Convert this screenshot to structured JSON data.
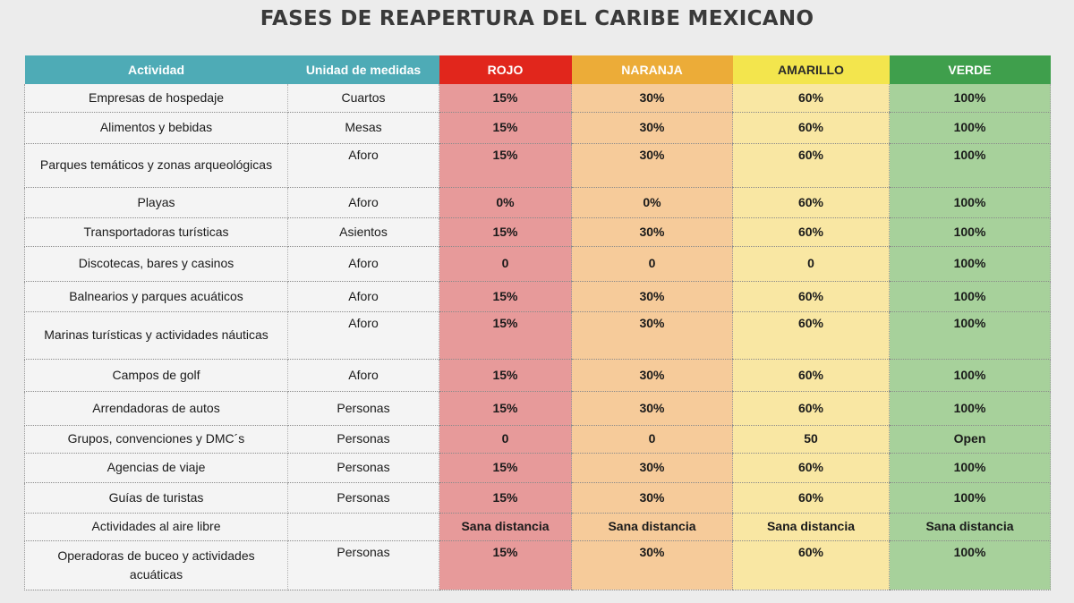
{
  "title": "FASES DE REAPERTURA DEL CARIBE MEXICANO",
  "headers": {
    "actividad": "Actividad",
    "unidad": "Unidad de medidas",
    "rojo": "ROJO",
    "naranja": "NARANJA",
    "amarillo": "AMARILLO",
    "verde": "VERDE"
  },
  "colors": {
    "header_teal": "#4eabb6",
    "rojo": "#e1261c",
    "naranja": "#ecac38",
    "amarillo": "#f3e54d",
    "verde": "#3f9f4c"
  },
  "rows": [
    {
      "actividad": "Empresas de hospedaje",
      "unidad": "Cuartos",
      "rojo": "15%",
      "naranja": "30%",
      "amarillo": "60%",
      "verde": "100%"
    },
    {
      "actividad": "Alimentos y bebidas",
      "unidad": "Mesas",
      "rojo": "15%",
      "naranja": "30%",
      "amarillo": "60%",
      "verde": "100%"
    },
    {
      "actividad": "Parques temáticos y zonas arqueológicas",
      "unidad": "Aforo",
      "rojo": "15%",
      "naranja": "30%",
      "amarillo": "60%",
      "verde": "100%"
    },
    {
      "actividad": "Playas",
      "unidad": "Aforo",
      "rojo": "0%",
      "naranja": "0%",
      "amarillo": "60%",
      "verde": "100%"
    },
    {
      "actividad": "Transportadoras turísticas",
      "unidad": "Asientos",
      "rojo": "15%",
      "naranja": "30%",
      "amarillo": "60%",
      "verde": "100%"
    },
    {
      "actividad": "Discotecas, bares y casinos",
      "unidad": "Aforo",
      "rojo": "0",
      "naranja": "0",
      "amarillo": "0",
      "verde": "100%"
    },
    {
      "actividad": "Balnearios y parques acuáticos",
      "unidad": "Aforo",
      "rojo": "15%",
      "naranja": "30%",
      "amarillo": "60%",
      "verde": "100%"
    },
    {
      "actividad": "Marinas turísticas y actividades náuticas",
      "unidad": "Aforo",
      "rojo": "15%",
      "naranja": "30%",
      "amarillo": "60%",
      "verde": "100%"
    },
    {
      "actividad": "Campos de golf",
      "unidad": "Aforo",
      "rojo": "15%",
      "naranja": "30%",
      "amarillo": "60%",
      "verde": "100%"
    },
    {
      "actividad": "Arrendadoras de autos",
      "unidad": "Personas",
      "rojo": "15%",
      "naranja": "30%",
      "amarillo": "60%",
      "verde": "100%"
    },
    {
      "actividad": "Grupos, convenciones y DMC´s",
      "unidad": "Personas",
      "rojo": "0",
      "naranja": "0",
      "amarillo": "50",
      "verde": "Open"
    },
    {
      "actividad": "Agencias de viaje",
      "unidad": "Personas",
      "rojo": "15%",
      "naranja": "30%",
      "amarillo": "60%",
      "verde": "100%"
    },
    {
      "actividad": "Guías de turistas",
      "unidad": "Personas",
      "rojo": "15%",
      "naranja": "30%",
      "amarillo": "60%",
      "verde": "100%"
    },
    {
      "actividad": "Actividades al aire libre",
      "unidad": "",
      "rojo": "Sana distancia",
      "naranja": "Sana distancia",
      "amarillo": "Sana distancia",
      "verde": "Sana distancia"
    },
    {
      "actividad": "Operadoras de buceo y actividades acuáticas",
      "unidad": "Personas",
      "rojo": "15%",
      "naranja": "30%",
      "amarillo": "60%",
      "verde": "100%"
    }
  ]
}
